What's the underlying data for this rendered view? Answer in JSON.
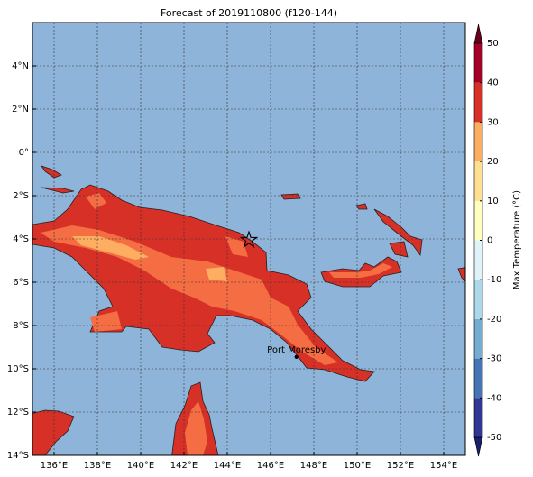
{
  "map": {
    "title": "Forecast of 2019110800 (f120-144)",
    "xlim": [
      135,
      155
    ],
    "ylim": [
      -14,
      6
    ],
    "xticks": [
      {
        "value": 136,
        "label": "136°E"
      },
      {
        "value": 138,
        "label": "138°E"
      },
      {
        "value": 140,
        "label": "140°E"
      },
      {
        "value": 142,
        "label": "142°E"
      },
      {
        "value": 144,
        "label": "144°E"
      },
      {
        "value": 146,
        "label": "146°E"
      },
      {
        "value": 148,
        "label": "148°E"
      },
      {
        "value": 150,
        "label": "150°E"
      },
      {
        "value": 152,
        "label": "152°E"
      },
      {
        "value": 154,
        "label": "154°E"
      }
    ],
    "yticks": [
      {
        "value": 4,
        "label": "4°N"
      },
      {
        "value": 2,
        "label": "2°N"
      },
      {
        "value": 0,
        "label": "0°"
      },
      {
        "value": -2,
        "label": "2°S"
      },
      {
        "value": -4,
        "label": "4°S"
      },
      {
        "value": -6,
        "label": "6°S"
      },
      {
        "value": -8,
        "label": "8°S"
      },
      {
        "value": -10,
        "label": "10°S"
      },
      {
        "value": -12,
        "label": "12°S"
      },
      {
        "value": -14,
        "label": "14°S"
      }
    ],
    "grid": true,
    "colorbar": {
      "label": "Max Temperature (°C)",
      "ticks": [
        -50,
        -40,
        -30,
        -20,
        -10,
        0,
        10,
        20,
        30,
        40,
        50
      ],
      "colors": [
        "#313695",
        "#4575b4",
        "#74add1",
        "#abd9e9",
        "#e0f3f8",
        "#ffffbf",
        "#fee090",
        "#fdae61",
        "#d73027",
        "#a50026"
      ],
      "under_color": "#1c1f6b",
      "over_color": "#67001f"
    },
    "places": [
      {
        "name": "Port Moresby",
        "lon": 147.2,
        "lat": -9.45
      }
    ],
    "marker": {
      "lon": 145,
      "lat": -4.05
    }
  }
}
